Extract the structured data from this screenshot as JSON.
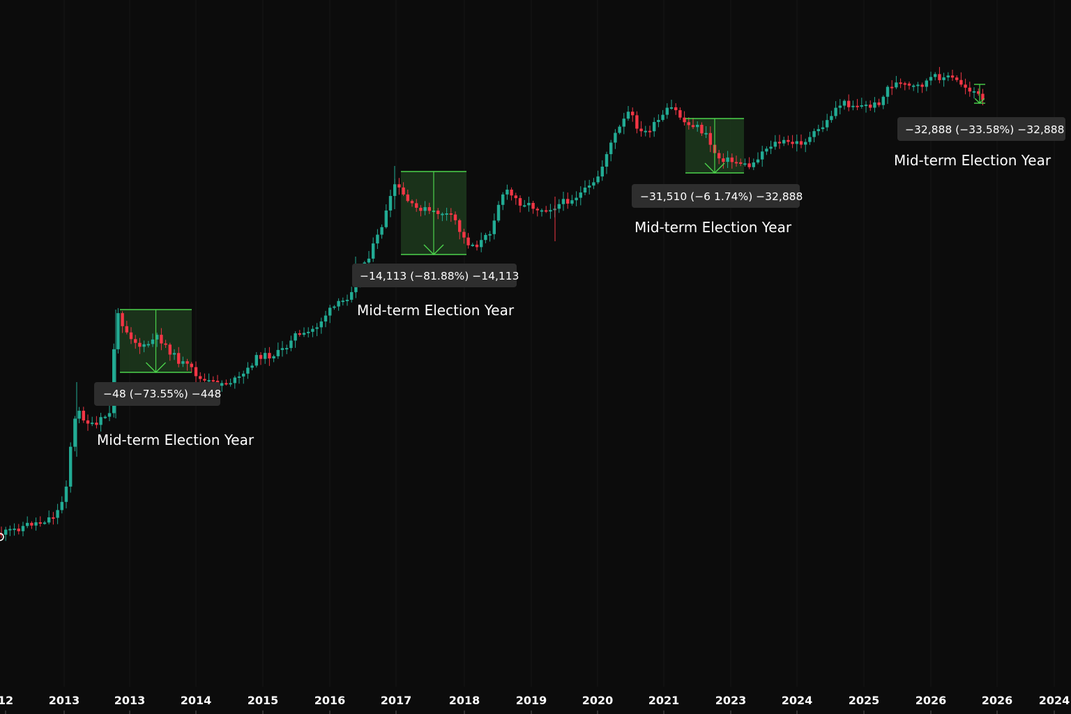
{
  "chart_data": {
    "type": "candlestick",
    "title": "",
    "xlabel": "",
    "ylabel": "",
    "x_tick_labels": [
      "12",
      "2013",
      "2013",
      "2014",
      "2015",
      "2016",
      "2017",
      "2018",
      "2019",
      "2020",
      "2021",
      "2023",
      "2024",
      "2025",
      "2026",
      "2026",
      "2024"
    ],
    "colors": {
      "up": "#22ab94",
      "down": "#f23645",
      "range_box": "#1d3a1d",
      "range_line": "#4cd34c",
      "background": "#0c0c0c"
    },
    "annotations": [
      {
        "label": "Mid-term Election Year",
        "measurement": "−48 (−73.55%) −448"
      },
      {
        "label": "Mid-term Election Year",
        "measurement": "−14,113 (−81.88%) −14,113"
      },
      {
        "label": "Mid-term Election Year",
        "measurement": "−31,510 (−6 1.74%) −32,888"
      },
      {
        "label": "Mid-term Election Year",
        "measurement": "−32,888 (−33.58%) −32,888"
      }
    ],
    "series_path": [
      [
        0,
        766
      ],
      [
        20,
        760
      ],
      [
        40,
        752
      ],
      [
        60,
        748
      ],
      [
        72,
        742
      ],
      [
        80,
        738
      ],
      [
        88,
        722
      ],
      [
        96,
        690
      ],
      [
        104,
        612
      ],
      [
        112,
        590
      ],
      [
        124,
        604
      ],
      [
        136,
        614
      ],
      [
        148,
        598
      ],
      [
        158,
        594
      ],
      [
        166,
        448
      ],
      [
        174,
        460
      ],
      [
        184,
        478
      ],
      [
        194,
        490
      ],
      [
        204,
        500
      ],
      [
        214,
        492
      ],
      [
        224,
        484
      ],
      [
        234,
        490
      ],
      [
        244,
        504
      ],
      [
        254,
        516
      ],
      [
        266,
        524
      ],
      [
        278,
        532
      ],
      [
        286,
        544
      ],
      [
        296,
        548
      ],
      [
        312,
        550
      ],
      [
        326,
        548
      ],
      [
        342,
        544
      ],
      [
        356,
        530
      ],
      [
        364,
        516
      ],
      [
        374,
        510
      ],
      [
        388,
        510
      ],
      [
        400,
        506
      ],
      [
        412,
        496
      ],
      [
        420,
        478
      ],
      [
        432,
        484
      ],
      [
        444,
        476
      ],
      [
        456,
        466
      ],
      [
        468,
        450
      ],
      [
        480,
        440
      ],
      [
        492,
        432
      ],
      [
        500,
        424
      ],
      [
        508,
        406
      ],
      [
        514,
        392
      ],
      [
        520,
        380
      ],
      [
        528,
        368
      ],
      [
        536,
        352
      ],
      [
        544,
        334
      ],
      [
        552,
        310
      ],
      [
        560,
        286
      ],
      [
        566,
        264
      ],
      [
        572,
        272
      ],
      [
        578,
        280
      ],
      [
        586,
        290
      ],
      [
        594,
        300
      ],
      [
        604,
        298
      ],
      [
        612,
        302
      ],
      [
        622,
        306
      ],
      [
        632,
        304
      ],
      [
        644,
        310
      ],
      [
        654,
        318
      ],
      [
        662,
        338
      ],
      [
        670,
        348
      ],
      [
        682,
        352
      ],
      [
        694,
        344
      ],
      [
        704,
        330
      ],
      [
        712,
        300
      ],
      [
        720,
        278
      ],
      [
        728,
        276
      ],
      [
        736,
        282
      ],
      [
        744,
        290
      ],
      [
        756,
        292
      ],
      [
        768,
        298
      ],
      [
        780,
        300
      ],
      [
        790,
        298
      ],
      [
        800,
        294
      ],
      [
        812,
        288
      ],
      [
        822,
        284
      ],
      [
        832,
        278
      ],
      [
        842,
        272
      ],
      [
        852,
        264
      ],
      [
        862,
        244
      ],
      [
        872,
        212
      ],
      [
        882,
        194
      ],
      [
        892,
        178
      ],
      [
        902,
        160
      ],
      [
        912,
        178
      ],
      [
        920,
        192
      ],
      [
        928,
        188
      ],
      [
        936,
        182
      ],
      [
        944,
        174
      ],
      [
        952,
        166
      ],
      [
        960,
        154
      ],
      [
        970,
        160
      ],
      [
        980,
        174
      ],
      [
        988,
        180
      ],
      [
        996,
        178
      ],
      [
        1004,
        186
      ],
      [
        1014,
        196
      ],
      [
        1022,
        214
      ],
      [
        1030,
        226
      ],
      [
        1040,
        228
      ],
      [
        1050,
        232
      ],
      [
        1060,
        232
      ],
      [
        1070,
        238
      ],
      [
        1078,
        238
      ],
      [
        1086,
        226
      ],
      [
        1096,
        214
      ],
      [
        1108,
        206
      ],
      [
        1122,
        204
      ],
      [
        1136,
        206
      ],
      [
        1150,
        204
      ],
      [
        1162,
        198
      ],
      [
        1172,
        188
      ],
      [
        1184,
        178
      ],
      [
        1196,
        158
      ],
      [
        1206,
        148
      ],
      [
        1222,
        150
      ],
      [
        1238,
        152
      ],
      [
        1252,
        152
      ],
      [
        1264,
        144
      ],
      [
        1274,
        124
      ],
      [
        1286,
        120
      ],
      [
        1300,
        124
      ],
      [
        1312,
        126
      ],
      [
        1322,
        122
      ],
      [
        1336,
        112
      ],
      [
        1350,
        110
      ],
      [
        1364,
        112
      ],
      [
        1378,
        120
      ],
      [
        1390,
        128
      ],
      [
        1400,
        132
      ],
      [
        1408,
        146
      ],
      [
        1414,
        146
      ]
    ]
  }
}
